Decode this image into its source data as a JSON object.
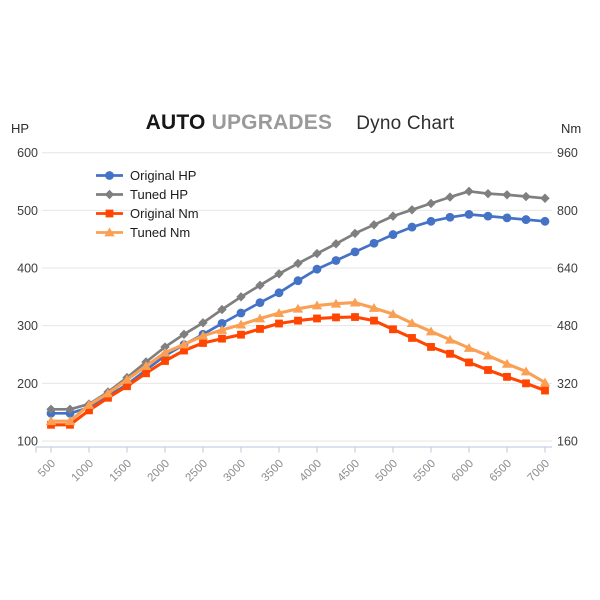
{
  "title": {
    "brand_bold": "AUTO",
    "brand_light": "UPGRADES",
    "chart_name": "Dyno Chart"
  },
  "axes": {
    "left_unit": "HP",
    "right_unit": "Nm",
    "left_ticks": [
      600,
      500,
      400,
      300,
      200,
      100
    ],
    "right_ticks": [
      960,
      800,
      640,
      480,
      320,
      160
    ],
    "x_ticks": [
      500,
      1000,
      1500,
      2000,
      2500,
      3000,
      3500,
      4000,
      4500,
      5000,
      5500,
      6000,
      6500,
      7000
    ]
  },
  "colors": {
    "original_hp": "#4472C4",
    "tuned_hp": "#7F7F7F",
    "original_nm": "#FF4500",
    "tuned_nm": "#FAA055",
    "gridline": "#E6E6E6",
    "axis_line": "#C6CFE5",
    "x_label_text": "#8D8D8D",
    "y_label_text": "#3C3C3C"
  },
  "chart_data": {
    "type": "line",
    "title": "AUTO UPGRADES Dyno Chart",
    "grid": true,
    "legend_position": "inside-top-left",
    "x_range": [
      500,
      7000
    ],
    "left_axis": {
      "unit": "HP",
      "range": [
        100,
        600
      ],
      "tick_step": 100
    },
    "right_axis": {
      "unit": "Nm",
      "range": [
        160,
        960
      ],
      "tick_step": 160
    },
    "x": [
      500,
      750,
      1000,
      1250,
      1500,
      1750,
      2000,
      2250,
      2500,
      2750,
      3000,
      3250,
      3500,
      3750,
      4000,
      4250,
      4500,
      4750,
      5000,
      5250,
      5500,
      5750,
      6000,
      6250,
      6500,
      6750,
      7000
    ],
    "series": [
      {
        "name": "Original HP",
        "axis": "left",
        "unit": "HP",
        "color": "#4472C4",
        "marker": "circle",
        "values": [
          148,
          148,
          158,
          178,
          198,
          223,
          248,
          267,
          285,
          304,
          322,
          340,
          357,
          378,
          398,
          413,
          428,
          443,
          458,
          471,
          481,
          488,
          493,
          490,
          487,
          484,
          481
        ]
      },
      {
        "name": "Tuned HP",
        "axis": "left",
        "unit": "HP",
        "color": "#7F7F7F",
        "marker": "diamond",
        "values": [
          155,
          155,
          164,
          185,
          210,
          237,
          263,
          285,
          305,
          328,
          350,
          370,
          390,
          408,
          425,
          442,
          460,
          475,
          490,
          501,
          512,
          523,
          533,
          529,
          527,
          524,
          521
        ]
      },
      {
        "name": "Original Nm",
        "axis": "right",
        "unit": "Nm",
        "color": "#FF4500",
        "marker": "square",
        "values": [
          205,
          205,
          245,
          280,
          312,
          348,
          382,
          411,
          432,
          444,
          455,
          471,
          486,
          494,
          500,
          503,
          504,
          494,
          470,
          446,
          421,
          402,
          378,
          357,
          338,
          320,
          300
        ]
      },
      {
        "name": "Tuned Nm",
        "axis": "right",
        "unit": "Nm",
        "color": "#FAA055",
        "marker": "triangle",
        "values": [
          215,
          215,
          260,
          292,
          330,
          368,
          405,
          428,
          452,
          468,
          483,
          500,
          515,
          527,
          536,
          541,
          544,
          529,
          512,
          487,
          464,
          441,
          418,
          397,
          374,
          353,
          322
        ]
      }
    ]
  }
}
